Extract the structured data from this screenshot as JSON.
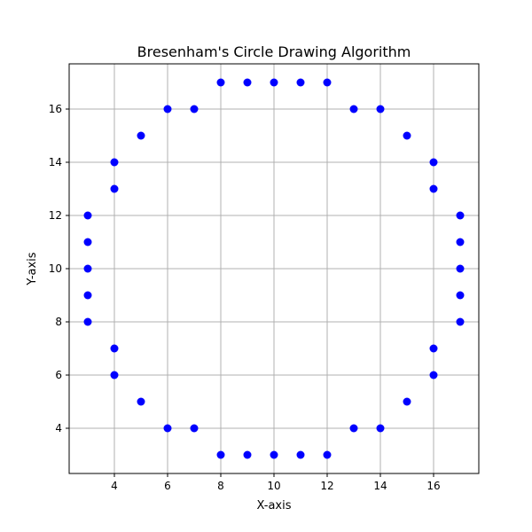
{
  "chart_data": {
    "type": "scatter",
    "title": "Bresenham's Circle Drawing Algorithm",
    "xlabel": "X-axis",
    "ylabel": "Y-axis",
    "xlim": [
      2.3,
      17.7
    ],
    "ylim": [
      2.3,
      17.7
    ],
    "xticks": [
      4,
      6,
      8,
      10,
      12,
      14,
      16
    ],
    "yticks": [
      4,
      6,
      8,
      10,
      12,
      14,
      16
    ],
    "grid": true,
    "marker_color": "#0000ff",
    "points": [
      [
        8,
        17
      ],
      [
        9,
        17
      ],
      [
        10,
        17
      ],
      [
        11,
        17
      ],
      [
        12,
        17
      ],
      [
        6,
        16
      ],
      [
        7,
        16
      ],
      [
        13,
        16
      ],
      [
        14,
        16
      ],
      [
        5,
        15
      ],
      [
        15,
        15
      ],
      [
        4,
        14
      ],
      [
        16,
        14
      ],
      [
        4,
        13
      ],
      [
        16,
        13
      ],
      [
        3,
        12
      ],
      [
        17,
        12
      ],
      [
        3,
        11
      ],
      [
        17,
        11
      ],
      [
        3,
        10
      ],
      [
        17,
        10
      ],
      [
        3,
        9
      ],
      [
        17,
        9
      ],
      [
        3,
        8
      ],
      [
        17,
        8
      ],
      [
        4,
        7
      ],
      [
        16,
        7
      ],
      [
        4,
        6
      ],
      [
        16,
        6
      ],
      [
        5,
        5
      ],
      [
        15,
        5
      ],
      [
        6,
        4
      ],
      [
        7,
        4
      ],
      [
        13,
        4
      ],
      [
        14,
        4
      ],
      [
        8,
        3
      ],
      [
        9,
        3
      ],
      [
        10,
        3
      ],
      [
        11,
        3
      ],
      [
        12,
        3
      ]
    ]
  }
}
